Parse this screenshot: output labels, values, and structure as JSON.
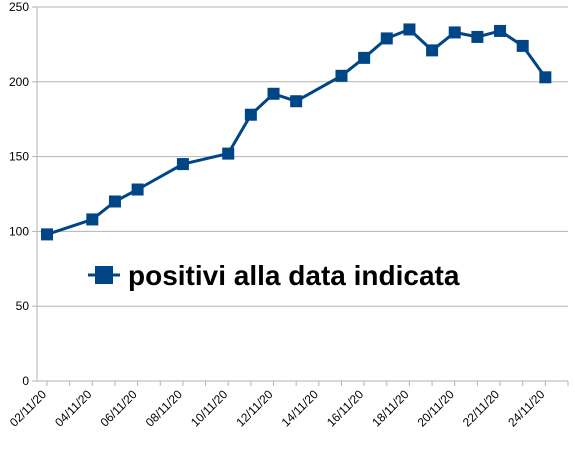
{
  "chart_data": {
    "type": "line",
    "x": [
      "02/11/20",
      "04/11/20",
      "05/11/20",
      "06/11/20",
      "08/11/20",
      "10/11/20",
      "11/11/20",
      "12/11/20",
      "13/11/20",
      "15/11/20",
      "16/11/20",
      "17/11/20",
      "18/11/20",
      "19/11/20",
      "20/11/20",
      "21/11/20",
      "22/11/20",
      "23/11/20",
      "24/11/20"
    ],
    "x_tick_labels": [
      "02/11/20",
      "04/11/20",
      "06/11/20",
      "08/11/20",
      "10/11/20",
      "12/11/20",
      "14/11/20",
      "16/11/20",
      "18/11/20",
      "20/11/20",
      "22/11/20",
      "24/11/20"
    ],
    "x_range": [
      "02/11/20",
      "25/11/20"
    ],
    "series": [
      {
        "name": "positivi alla data indicata",
        "values": [
          98,
          108,
          120,
          128,
          145,
          152,
          178,
          192,
          187,
          204,
          216,
          229,
          235,
          221,
          233,
          230,
          234,
          224,
          203
        ]
      }
    ],
    "ylim": [
      0,
      250
    ],
    "y_ticks": [
      0,
      50,
      100,
      150,
      200,
      250
    ],
    "grid": "horizontal",
    "legend": "center",
    "colors": {
      "series": "#004586",
      "grid": "#b3b3b3",
      "axis": "#b3b3b3"
    },
    "marker": "square",
    "title": "",
    "xlabel": "",
    "ylabel": ""
  }
}
